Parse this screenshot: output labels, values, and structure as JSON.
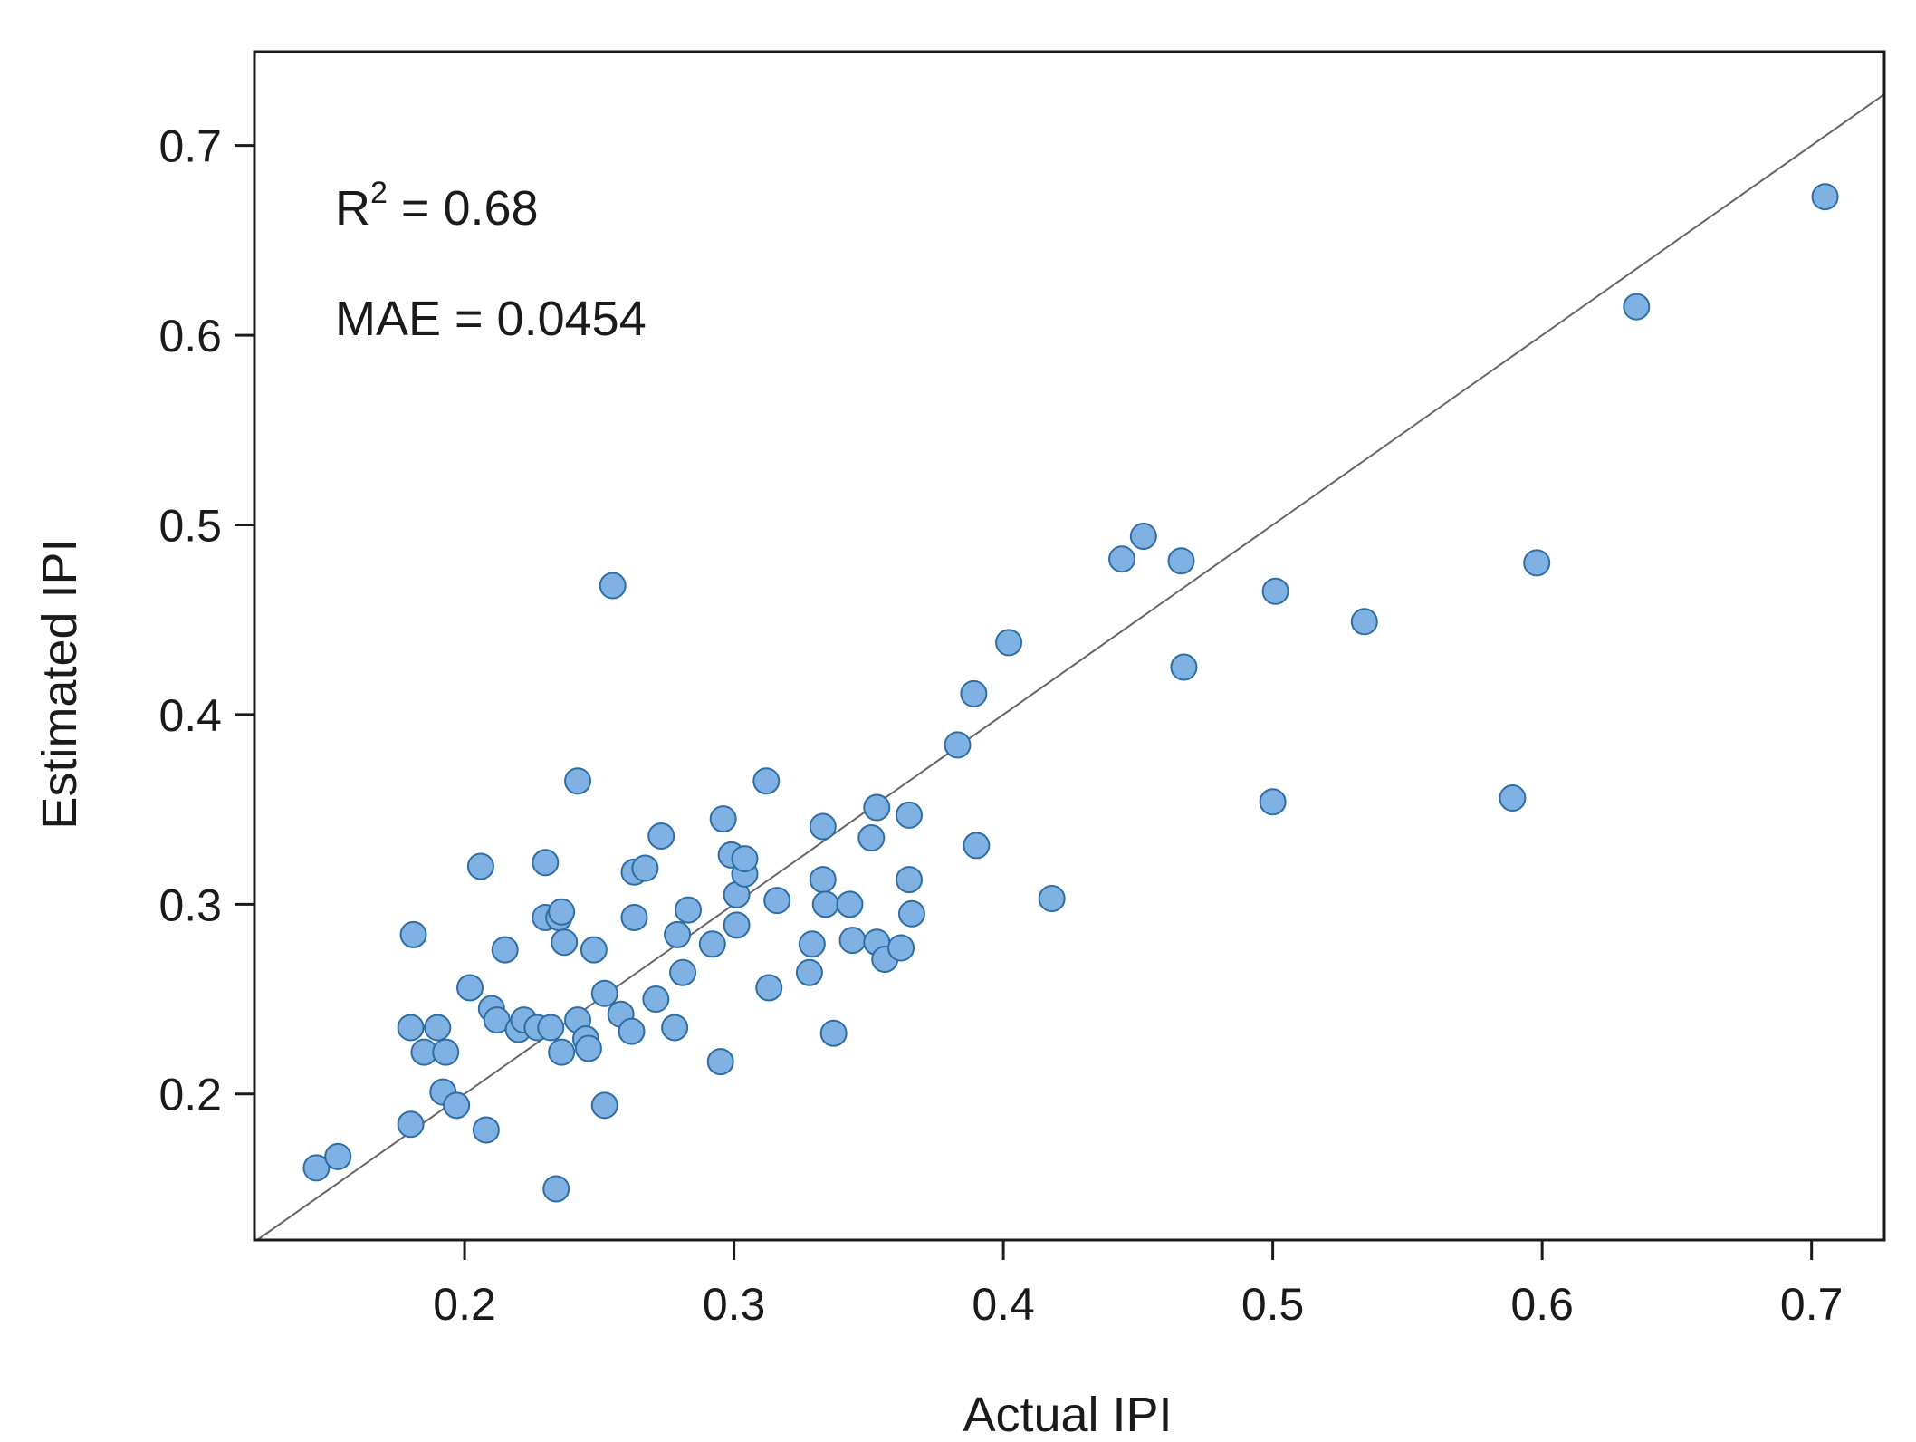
{
  "chart_data": {
    "type": "scatter",
    "title": "",
    "xlabel": "Actual IPI",
    "ylabel": "Estimated IPI",
    "xlim": [
      0.122,
      0.727
    ],
    "ylim": [
      0.123,
      0.7495
    ],
    "xticks": [
      0.2,
      0.3,
      0.4,
      0.5,
      0.6,
      0.7
    ],
    "yticks": [
      0.2,
      0.3,
      0.4,
      0.5,
      0.6,
      0.7
    ],
    "xtick_labels": [
      "0.2",
      "0.3",
      "0.4",
      "0.5",
      "0.6",
      "0.7"
    ],
    "ytick_labels": [
      "0.2",
      "0.3",
      "0.4",
      "0.5",
      "0.6",
      "0.7"
    ],
    "grid": false,
    "reference_line": "y = x",
    "colors": {
      "marker_fill": "#7fb2e3",
      "marker_stroke": "#2e6da4",
      "line": "#666666",
      "frame": "#1a1a1a"
    },
    "annotations": {
      "r2_label": "R",
      "r2_sup": "2",
      "r2_value": " = 0.68",
      "mae_text": "MAE = 0.0454"
    },
    "points": [
      {
        "x": 0.145,
        "y": 0.161
      },
      {
        "x": 0.153,
        "y": 0.167
      },
      {
        "x": 0.18,
        "y": 0.184
      },
      {
        "x": 0.18,
        "y": 0.235
      },
      {
        "x": 0.181,
        "y": 0.284
      },
      {
        "x": 0.185,
        "y": 0.222
      },
      {
        "x": 0.19,
        "y": 0.235
      },
      {
        "x": 0.192,
        "y": 0.201
      },
      {
        "x": 0.193,
        "y": 0.222
      },
      {
        "x": 0.197,
        "y": 0.194
      },
      {
        "x": 0.202,
        "y": 0.256
      },
      {
        "x": 0.206,
        "y": 0.32
      },
      {
        "x": 0.208,
        "y": 0.181
      },
      {
        "x": 0.21,
        "y": 0.245
      },
      {
        "x": 0.212,
        "y": 0.239
      },
      {
        "x": 0.215,
        "y": 0.276
      },
      {
        "x": 0.22,
        "y": 0.234
      },
      {
        "x": 0.222,
        "y": 0.239
      },
      {
        "x": 0.227,
        "y": 0.235
      },
      {
        "x": 0.23,
        "y": 0.322
      },
      {
        "x": 0.23,
        "y": 0.293
      },
      {
        "x": 0.232,
        "y": 0.235
      },
      {
        "x": 0.234,
        "y": 0.15
      },
      {
        "x": 0.235,
        "y": 0.293
      },
      {
        "x": 0.236,
        "y": 0.222
      },
      {
        "x": 0.236,
        "y": 0.296
      },
      {
        "x": 0.237,
        "y": 0.28
      },
      {
        "x": 0.242,
        "y": 0.365
      },
      {
        "x": 0.242,
        "y": 0.239
      },
      {
        "x": 0.245,
        "y": 0.229
      },
      {
        "x": 0.246,
        "y": 0.224
      },
      {
        "x": 0.248,
        "y": 0.276
      },
      {
        "x": 0.252,
        "y": 0.194
      },
      {
        "x": 0.252,
        "y": 0.253
      },
      {
        "x": 0.255,
        "y": 0.468
      },
      {
        "x": 0.258,
        "y": 0.242
      },
      {
        "x": 0.262,
        "y": 0.233
      },
      {
        "x": 0.263,
        "y": 0.293
      },
      {
        "x": 0.263,
        "y": 0.317
      },
      {
        "x": 0.267,
        "y": 0.319
      },
      {
        "x": 0.271,
        "y": 0.25
      },
      {
        "x": 0.273,
        "y": 0.336
      },
      {
        "x": 0.278,
        "y": 0.235
      },
      {
        "x": 0.279,
        "y": 0.284
      },
      {
        "x": 0.281,
        "y": 0.264
      },
      {
        "x": 0.283,
        "y": 0.297
      },
      {
        "x": 0.292,
        "y": 0.279
      },
      {
        "x": 0.295,
        "y": 0.217
      },
      {
        "x": 0.296,
        "y": 0.345
      },
      {
        "x": 0.299,
        "y": 0.326
      },
      {
        "x": 0.301,
        "y": 0.305
      },
      {
        "x": 0.301,
        "y": 0.289
      },
      {
        "x": 0.304,
        "y": 0.316
      },
      {
        "x": 0.304,
        "y": 0.324
      },
      {
        "x": 0.312,
        "y": 0.365
      },
      {
        "x": 0.313,
        "y": 0.256
      },
      {
        "x": 0.316,
        "y": 0.302
      },
      {
        "x": 0.328,
        "y": 0.264
      },
      {
        "x": 0.329,
        "y": 0.279
      },
      {
        "x": 0.333,
        "y": 0.313
      },
      {
        "x": 0.333,
        "y": 0.341
      },
      {
        "x": 0.334,
        "y": 0.3
      },
      {
        "x": 0.337,
        "y": 0.232
      },
      {
        "x": 0.343,
        "y": 0.3
      },
      {
        "x": 0.344,
        "y": 0.281
      },
      {
        "x": 0.351,
        "y": 0.335
      },
      {
        "x": 0.353,
        "y": 0.351
      },
      {
        "x": 0.353,
        "y": 0.28
      },
      {
        "x": 0.356,
        "y": 0.271
      },
      {
        "x": 0.362,
        "y": 0.277
      },
      {
        "x": 0.365,
        "y": 0.347
      },
      {
        "x": 0.365,
        "y": 0.313
      },
      {
        "x": 0.366,
        "y": 0.295
      },
      {
        "x": 0.383,
        "y": 0.384
      },
      {
        "x": 0.389,
        "y": 0.411
      },
      {
        "x": 0.39,
        "y": 0.331
      },
      {
        "x": 0.402,
        "y": 0.438
      },
      {
        "x": 0.418,
        "y": 0.303
      },
      {
        "x": 0.444,
        "y": 0.482
      },
      {
        "x": 0.452,
        "y": 0.494
      },
      {
        "x": 0.466,
        "y": 0.481
      },
      {
        "x": 0.467,
        "y": 0.425
      },
      {
        "x": 0.5,
        "y": 0.354
      },
      {
        "x": 0.501,
        "y": 0.465
      },
      {
        "x": 0.534,
        "y": 0.449
      },
      {
        "x": 0.589,
        "y": 0.356
      },
      {
        "x": 0.598,
        "y": 0.48
      },
      {
        "x": 0.635,
        "y": 0.615
      },
      {
        "x": 0.705,
        "y": 0.673
      }
    ]
  }
}
